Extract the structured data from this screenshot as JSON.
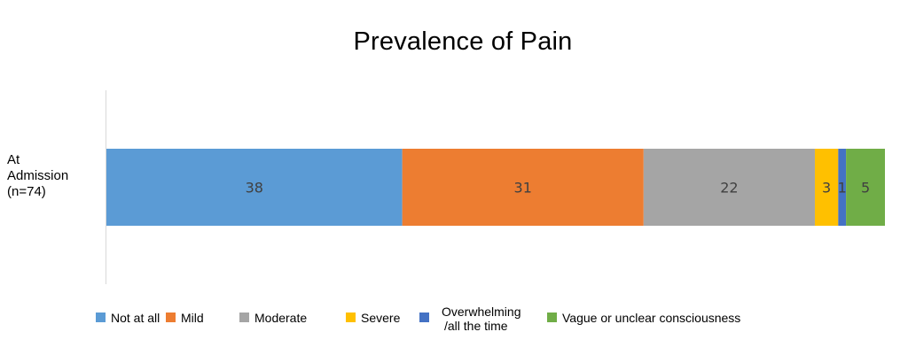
{
  "chart_data": {
    "type": "bar",
    "orientation": "horizontal",
    "stacked": true,
    "title": "Prevalence of Pain",
    "categories": [
      [
        "At",
        "Admission",
        "(n=74)"
      ]
    ],
    "series": [
      {
        "name": "Not at all",
        "values": [
          38
        ],
        "color": "#5b9bd5"
      },
      {
        "name": "Mild",
        "values": [
          31
        ],
        "color": "#ed7d31"
      },
      {
        "name": "Moderate",
        "values": [
          22
        ],
        "color": "#a5a5a5"
      },
      {
        "name": "Severe",
        "values": [
          3
        ],
        "color": "#ffc000"
      },
      {
        "name": "Overwhelming /all the time",
        "legend_lines": [
          "Overwhelming",
          "/all the time"
        ],
        "values": [
          1
        ],
        "color": "#4472c4"
      },
      {
        "name": "Vague or unclear consciousness",
        "values": [
          5
        ],
        "color": "#70ad47"
      }
    ],
    "xlim": [
      0,
      100
    ],
    "grid": false,
    "legend_position": "bottom",
    "data_labels": true
  }
}
